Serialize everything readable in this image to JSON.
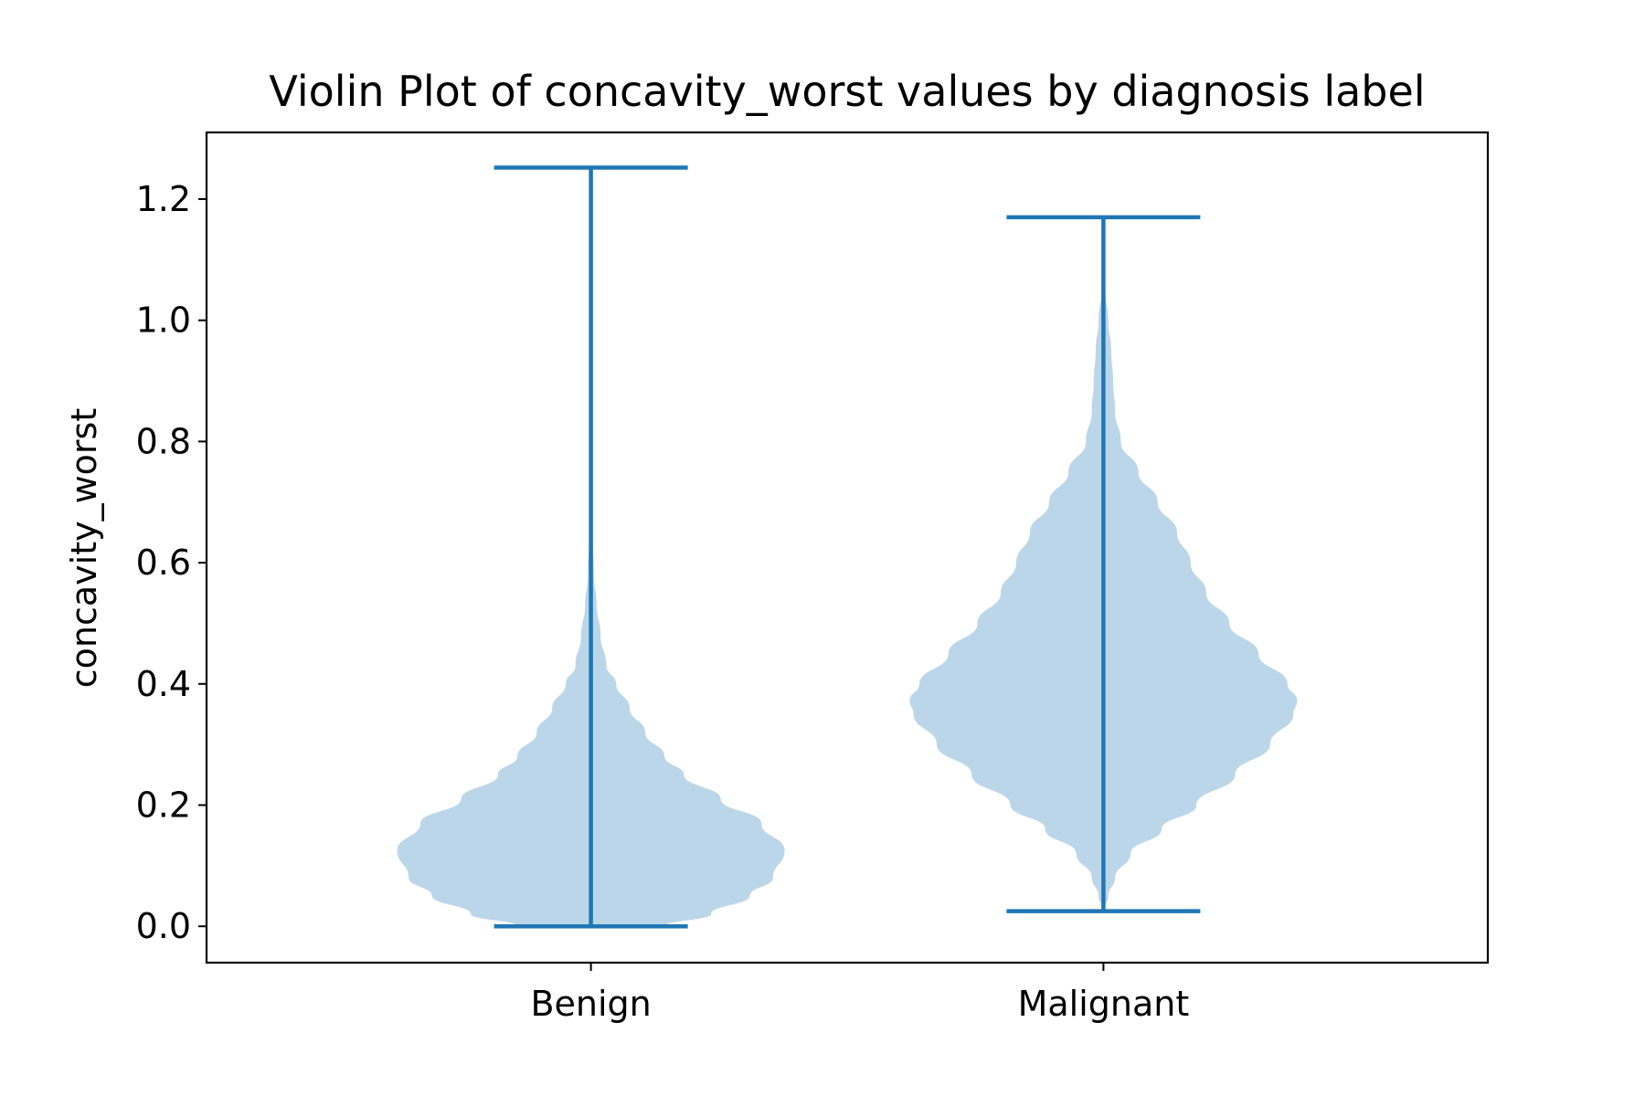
{
  "colors": {
    "violin_fill": "#1f77b4",
    "violin_fill_opacity": 0.3,
    "line": "#1f77b4",
    "axes": "#000000",
    "background": "#ffffff"
  },
  "chart_data": {
    "type": "violin",
    "title": "Violin Plot of concavity_worst values by diagnosis label",
    "xlabel": "",
    "ylabel": "concavity_worst",
    "categories": [
      "Benign",
      "Malignant"
    ],
    "ylim": [
      -0.06,
      1.31
    ],
    "yticks": [
      0.0,
      0.2,
      0.4,
      0.6,
      0.8,
      1.0,
      1.2
    ],
    "ytick_labels": [
      "0.0",
      "0.2",
      "0.4",
      "0.6",
      "0.8",
      "1.0",
      "1.2"
    ],
    "grid": false,
    "show_extrema": true,
    "violins": [
      {
        "category": "Benign",
        "min": 0.0,
        "max": 1.252,
        "density_profile": [
          [
            0.0,
            0.38
          ],
          [
            0.02,
            0.62
          ],
          [
            0.05,
            0.82
          ],
          [
            0.08,
            0.94
          ],
          [
            0.125,
            1.0
          ],
          [
            0.17,
            0.88
          ],
          [
            0.21,
            0.67
          ],
          [
            0.25,
            0.48
          ],
          [
            0.28,
            0.38
          ],
          [
            0.32,
            0.28
          ],
          [
            0.36,
            0.2
          ],
          [
            0.4,
            0.13
          ],
          [
            0.43,
            0.08
          ],
          [
            0.48,
            0.05
          ],
          [
            0.53,
            0.03
          ],
          [
            0.58,
            0.015
          ],
          [
            0.65,
            0.008
          ],
          [
            0.8,
            0.004
          ],
          [
            1.0,
            0.002
          ],
          [
            1.252,
            0.0
          ]
        ]
      },
      {
        "category": "Malignant",
        "min": 0.025,
        "max": 1.17,
        "density_profile": [
          [
            0.025,
            0.0
          ],
          [
            0.05,
            0.025
          ],
          [
            0.08,
            0.06
          ],
          [
            0.12,
            0.14
          ],
          [
            0.16,
            0.3
          ],
          [
            0.2,
            0.48
          ],
          [
            0.25,
            0.68
          ],
          [
            0.3,
            0.86
          ],
          [
            0.35,
            0.98
          ],
          [
            0.372,
            1.0
          ],
          [
            0.4,
            0.95
          ],
          [
            0.45,
            0.8
          ],
          [
            0.5,
            0.65
          ],
          [
            0.55,
            0.53
          ],
          [
            0.6,
            0.45
          ],
          [
            0.65,
            0.38
          ],
          [
            0.7,
            0.28
          ],
          [
            0.75,
            0.18
          ],
          [
            0.8,
            0.09
          ],
          [
            0.85,
            0.06
          ],
          [
            0.9,
            0.05
          ],
          [
            0.95,
            0.04
          ],
          [
            1.0,
            0.025
          ],
          [
            1.05,
            0.01
          ],
          [
            1.1,
            0.004
          ],
          [
            1.17,
            0.0
          ]
        ]
      }
    ]
  }
}
